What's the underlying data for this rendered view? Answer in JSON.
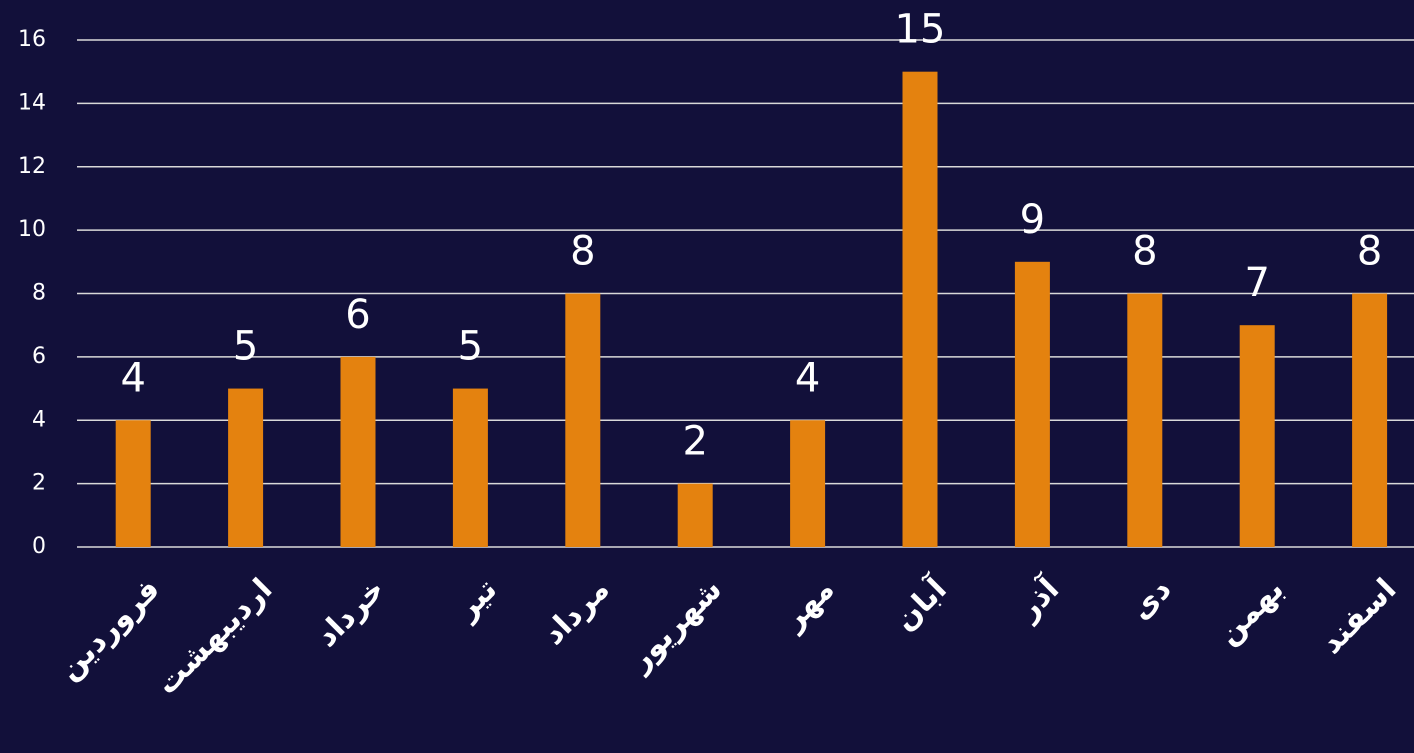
{
  "chart_data": {
    "type": "bar",
    "categories": [
      "فروردین",
      "اردیبهشت",
      "خرداد",
      "تیر",
      "مرداد",
      "شهریور",
      "مهر",
      "آبان",
      "آذر",
      "دی",
      "بهمن",
      "اسفند"
    ],
    "values": [
      4,
      5,
      6,
      5,
      8,
      2,
      4,
      15,
      9,
      8,
      7,
      8
    ],
    "color": "#e4820f",
    "ylim": [
      0,
      16
    ],
    "yticks": [
      0,
      2,
      4,
      6,
      8,
      10,
      12,
      14,
      16
    ],
    "grid": true
  }
}
